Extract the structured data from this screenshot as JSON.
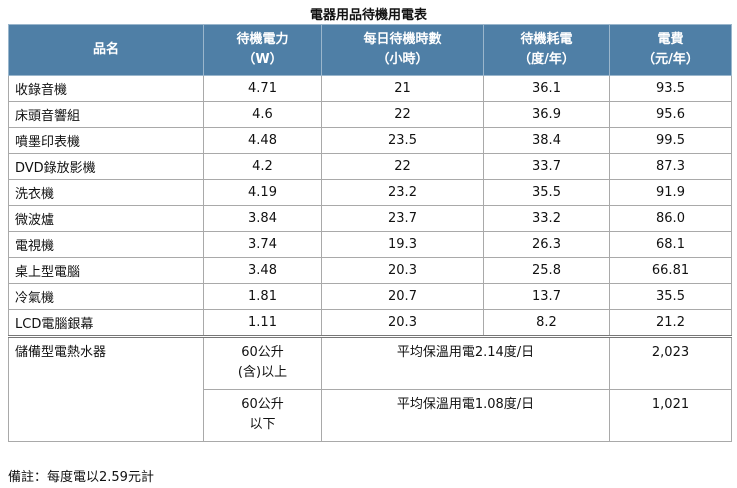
{
  "title": "電器用品待機用電表",
  "headers": [
    {
      "l1": "品名",
      "l2": ""
    },
    {
      "l1": "待機電力",
      "l2": "（W）"
    },
    {
      "l1": "每日待機時數",
      "l2": "（小時）"
    },
    {
      "l1": "待機耗電",
      "l2": "（度/年）"
    },
    {
      "l1": "電費",
      "l2": "（元/年）"
    }
  ],
  "rows": [
    {
      "name": "收錄音機",
      "power": "4.71",
      "hours": "21",
      "kwh": "36.1",
      "cost": "93.5"
    },
    {
      "name": "床頭音響組",
      "power": "4.6",
      "hours": "22",
      "kwh": "36.9",
      "cost": "95.6"
    },
    {
      "name": "噴墨印表機",
      "power": "4.48",
      "hours": "23.5",
      "kwh": "38.4",
      "cost": "99.5"
    },
    {
      "name": "DVD錄放影機",
      "power": "4.2",
      "hours": "22",
      "kwh": "33.7",
      "cost": "87.3"
    },
    {
      "name": "洗衣機",
      "power": "4.19",
      "hours": "23.2",
      "kwh": "35.5",
      "cost": "91.9"
    },
    {
      "name": "微波爐",
      "power": "3.84",
      "hours": "23.7",
      "kwh": "33.2",
      "cost": "86.0"
    },
    {
      "name": "電視機",
      "power": "3.74",
      "hours": "19.3",
      "kwh": "26.3",
      "cost": "68.1"
    },
    {
      "name": "桌上型電腦",
      "power": "3.48",
      "hours": "20.3",
      "kwh": "25.8",
      "cost": "66.81"
    },
    {
      "name": "冷氣機",
      "power": "1.81",
      "hours": "20.7",
      "kwh": "13.7",
      "cost": "35.5"
    },
    {
      "name": "LCD電腦銀幕",
      "power": "1.11",
      "hours": "20.3",
      "kwh": "8.2",
      "cost": "21.2"
    }
  ],
  "heater": {
    "name": "儲備型電熱水器",
    "variants": [
      {
        "cap_l1": "60公升",
        "cap_l2": "(含)以上",
        "usage": "平均保溫用電2.14度/日",
        "cost": "2,023"
      },
      {
        "cap_l1": "60公升",
        "cap_l2": "以下",
        "usage": "平均保溫用電1.08度/日",
        "cost": "1,021"
      }
    ]
  },
  "note": "備註：每度電以2.59元計"
}
